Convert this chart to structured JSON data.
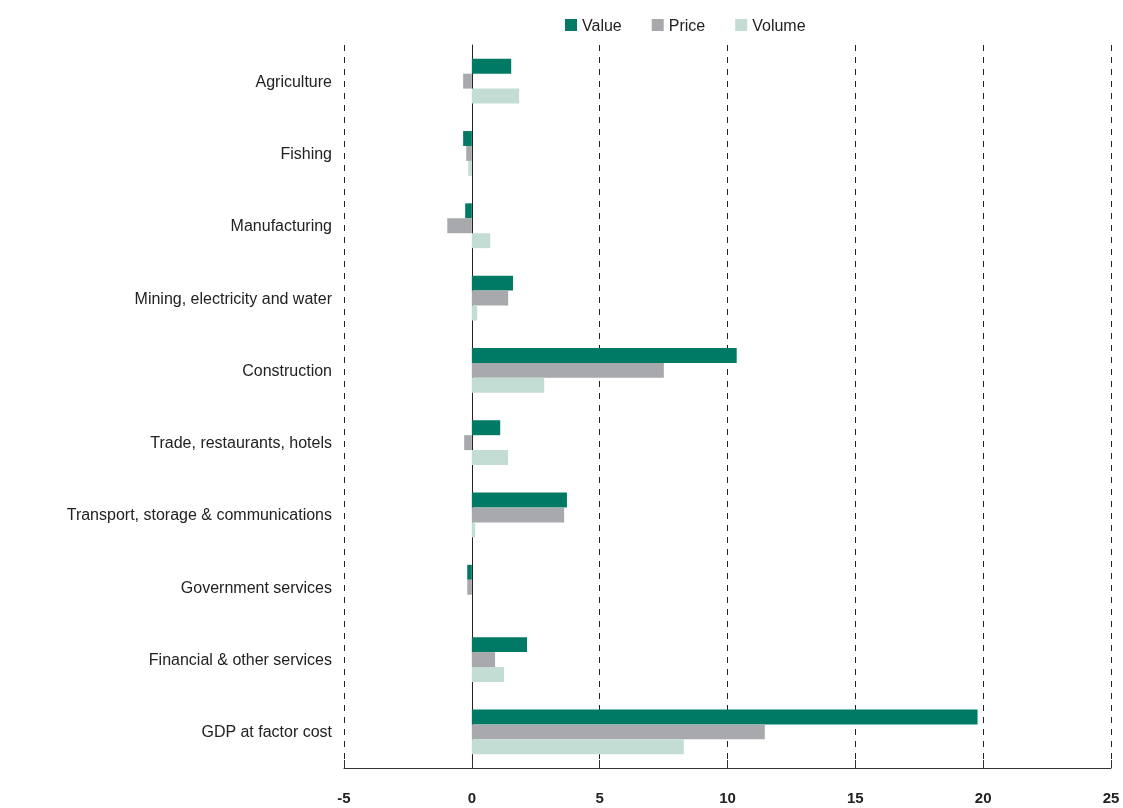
{
  "chart_data": {
    "type": "bar",
    "orientation": "horizontal",
    "categories": [
      "Agriculture",
      "Fishing",
      "Manufacturing",
      "Mining, electricity and water",
      "Construction",
      "Trade, restaurants, hotels",
      "Transport, storage & communications",
      "Government services",
      "Financial & other services",
      "GDP at factor cost"
    ],
    "series": [
      {
        "name": "Value",
        "color": "#007a64",
        "values": [
          1.54,
          -0.34,
          -0.26,
          1.61,
          10.36,
          1.11,
          3.72,
          -0.18,
          2.16,
          19.78
        ]
      },
      {
        "name": "Price",
        "color": "#a7a9ac",
        "values": [
          -0.34,
          -0.22,
          -0.96,
          1.42,
          7.51,
          -0.3,
          3.61,
          -0.18,
          0.91,
          11.46
        ]
      },
      {
        "name": "Volume",
        "color": "#c4ddd4",
        "values": [
          1.85,
          -0.14,
          0.72,
          0.21,
          2.83,
          1.42,
          0.13,
          0,
          1.26,
          8.29
        ]
      }
    ],
    "xlim": [
      -5,
      25
    ],
    "xticks": [
      -5,
      0,
      5,
      10,
      15,
      20,
      25
    ],
    "grid": "x",
    "legend": "top"
  }
}
